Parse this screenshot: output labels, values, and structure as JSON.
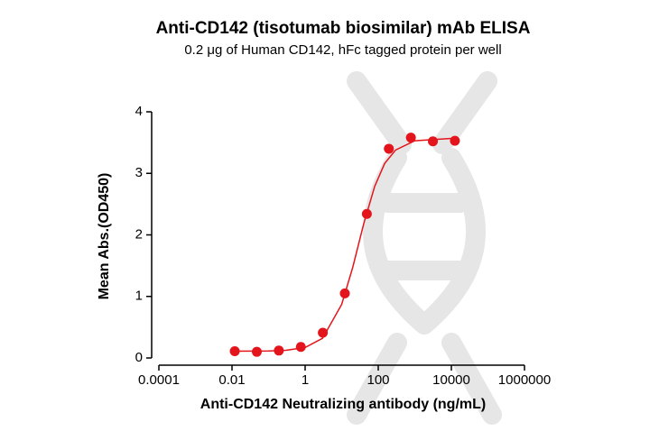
{
  "chart_data": {
    "type": "scatter",
    "title": "Anti-CD142 (tisotumab biosimilar) mAb ELISA",
    "subtitle": "0.2 μg of Human CD142, hFc tagged protein per well",
    "x_label": "Anti-CD142 Neutralizing antibody (ng/mL)",
    "y_label": "Mean Abs.(OD450)",
    "x_scale": "log",
    "color": "#e3141b",
    "x": [
      0.0119,
      0.0477,
      0.191,
      0.763,
      3.05,
      12.2,
      48.8,
      195,
      781,
      3125,
      12500
    ],
    "y": [
      0.11,
      0.1,
      0.12,
      0.18,
      0.41,
      1.05,
      2.34,
      3.4,
      3.58,
      3.52,
      3.53
    ],
    "fit": {
      "x": [
        0.01,
        0.1,
        0.3,
        1,
        3,
        10,
        20,
        40,
        80,
        150,
        300,
        1000,
        12500
      ],
      "y": [
        0.11,
        0.114,
        0.124,
        0.17,
        0.32,
        0.87,
        1.47,
        2.18,
        2.79,
        3.16,
        3.38,
        3.53,
        3.57
      ]
    },
    "xlim": [
      0.0001,
      1000000
    ],
    "xticks": [
      0.0001,
      0.01,
      1,
      100,
      10000,
      1000000
    ],
    "ylim": [
      0,
      4
    ],
    "yticks": [
      0,
      1,
      2,
      3,
      4
    ]
  }
}
